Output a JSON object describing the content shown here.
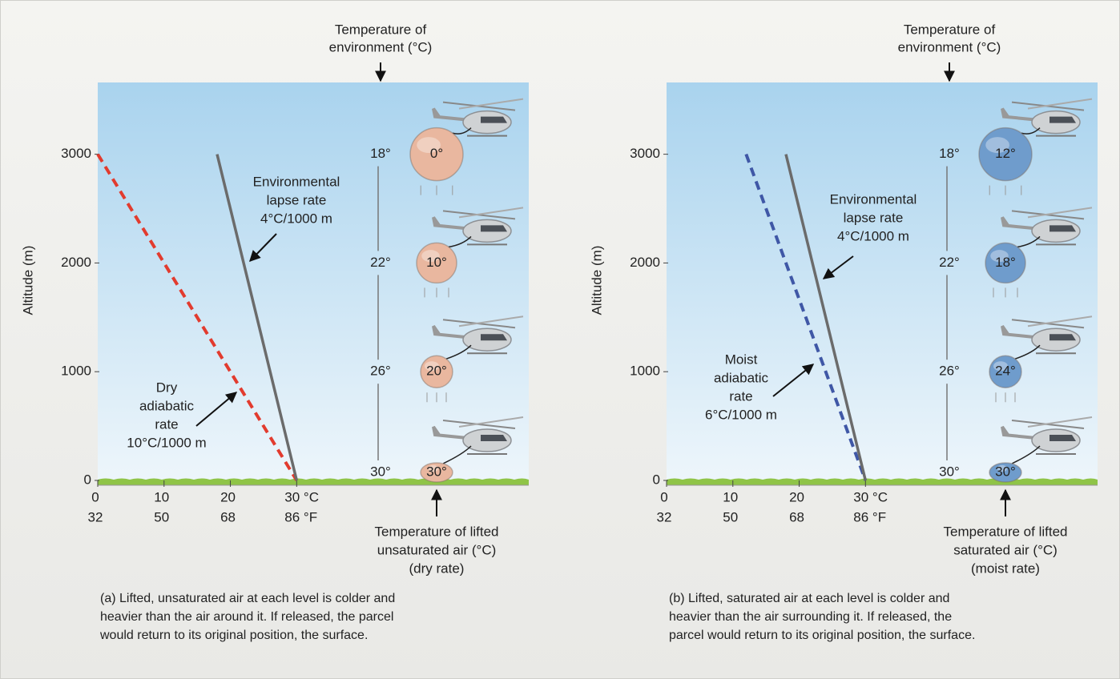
{
  "chart_data": [
    {
      "type": "line",
      "ylabel": "Altitude (m)",
      "xlim": [
        0,
        65
      ],
      "xticks": [
        0,
        10,
        20,
        {
          "value": 30,
          "label": "30 °C"
        }
      ],
      "x2lim": [
        32,
        149
      ],
      "x2ticks": [
        32,
        50,
        68,
        {
          "value": 86,
          "label": "86 °F"
        }
      ],
      "ylim": [
        0,
        3660
      ],
      "yticks": [
        0,
        1000,
        2000,
        3000
      ],
      "series": [
        {
          "x": [
            0,
            30
          ],
          "values": [
            3000,
            0
          ],
          "color": "#e23b2e",
          "dashed": true,
          "label": [
            "Dry",
            "adiabatic",
            "rate",
            "10°C/1000 m"
          ]
        },
        {
          "x": [
            18,
            30
          ],
          "values": [
            3000,
            0
          ],
          "color": "#6b6b6b",
          "dashed": false,
          "label": [
            "Environmental",
            "lapse rate",
            "4°C/1000 m"
          ]
        }
      ],
      "environment_label": [
        "Temperature of",
        "environment (°C)"
      ],
      "parcel_label": [
        "Temperature of lifted",
        "unsaturated air (°C)",
        "(dry rate)"
      ],
      "parcels": {
        "altitudes": [
          3000,
          2000,
          1000,
          0
        ],
        "environment": [
          "18°",
          "22°",
          "26°",
          "30°"
        ],
        "parcel": [
          "0°",
          "10°",
          "20°",
          "30°"
        ],
        "color": "#e9b79f"
      },
      "caption": [
        "(a) Lifted, unsaturated air at each level is colder and",
        "heavier than the air around it.  If released, the parcel",
        "would return to its original position, the surface."
      ]
    },
    {
      "type": "line",
      "ylabel": "Altitude (m)",
      "xlim": [
        0,
        65
      ],
      "xticks": [
        0,
        10,
        20,
        {
          "value": 30,
          "label": "30 °C"
        }
      ],
      "x2lim": [
        32,
        149
      ],
      "x2ticks": [
        32,
        50,
        68,
        {
          "value": 86,
          "label": "86 °F"
        }
      ],
      "ylim": [
        0,
        3660
      ],
      "yticks": [
        0,
        1000,
        2000,
        3000
      ],
      "series": [
        {
          "x": [
            12,
            30
          ],
          "values": [
            3000,
            0
          ],
          "color": "#3f57a6",
          "dashed": true,
          "label": [
            "Moist",
            "adiabatic",
            "rate",
            "6°C/1000 m"
          ]
        },
        {
          "x": [
            18,
            30
          ],
          "values": [
            3000,
            0
          ],
          "color": "#6b6b6b",
          "dashed": false,
          "label": [
            "Environmental",
            "lapse rate",
            "4°C/1000 m"
          ]
        }
      ],
      "environment_label": [
        "Temperature of",
        "environment (°C)"
      ],
      "parcel_label": [
        "Temperature of lifted",
        "saturated air (°C)",
        "(moist rate)"
      ],
      "parcels": {
        "altitudes": [
          3000,
          2000,
          1000,
          0
        ],
        "environment": [
          "18°",
          "22°",
          "26°",
          "30°"
        ],
        "parcel": [
          "12°",
          "18°",
          "24°",
          "30°"
        ],
        "color": "#6f9ccc"
      },
      "caption": [
        "(b) Lifted, saturated air at each level is colder and",
        "heavier than the air surrounding it.  If released, the",
        "parcel would return to its original position, the surface."
      ]
    }
  ]
}
